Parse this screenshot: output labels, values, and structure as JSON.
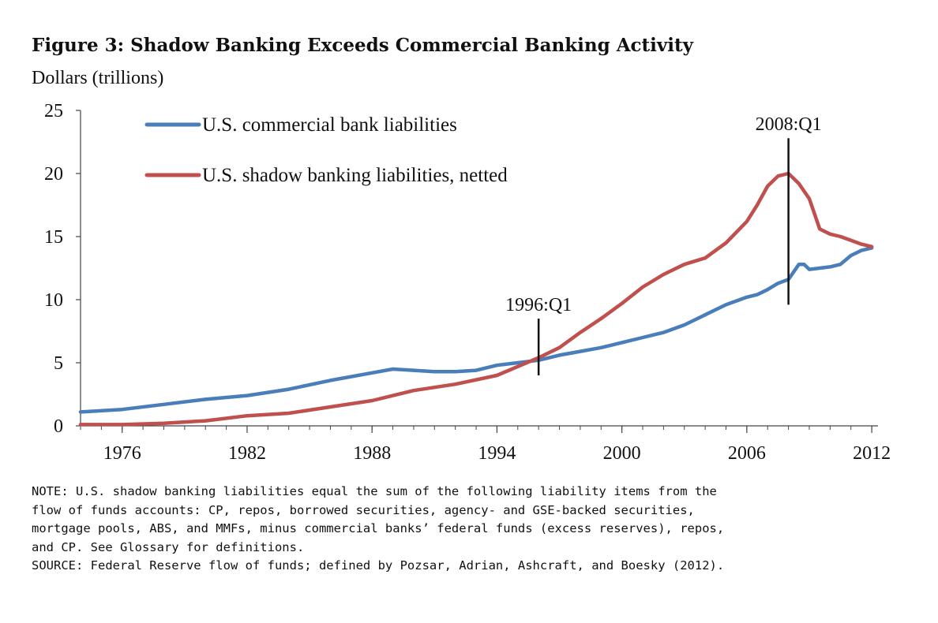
{
  "figure_title": "Figure 3: Shadow Banking Exceeds Commercial Banking Activity",
  "note_lines": [
    "NOTE: U.S. shadow banking liabilities equal the sum of the following liability items from the",
    "flow of funds accounts: CP, repos, borrowed securities, agency- and GSE-backed securities,",
    "mortgage pools, ABS, and MMFs, minus commercial banks’ federal funds (excess reserves), repos,",
    "and CP. See Glossary for definitions."
  ],
  "source_line": "SOURCE: Federal Reserve flow of funds; defined by Pozsar, Adrian, Ashcraft, and Boesky (2012).",
  "chart_data": {
    "type": "line",
    "title": "Figure 3: Shadow Banking Exceeds Commercial Banking Activity",
    "ylabel": "Dollars (trillions)",
    "xlabel": "",
    "xlim": [
      1974,
      2012.3
    ],
    "ylim": [
      0,
      25
    ],
    "yticks": [
      0,
      5,
      10,
      15,
      20,
      25
    ],
    "xticks": [
      "1976",
      "1982",
      "1988",
      "1994",
      "2000",
      "2006",
      "2012"
    ],
    "xtick_values": [
      1976,
      1982,
      1988,
      1994,
      2000,
      2006,
      2012
    ],
    "grid": false,
    "legend_position": "top-left",
    "series": [
      {
        "name": "U.S. commercial bank liabilities",
        "color": "#4a7ebb",
        "x": [
          1974,
          1976,
          1978,
          1980,
          1982,
          1984,
          1986,
          1988,
          1989,
          1990,
          1991,
          1992,
          1993,
          1994,
          1995,
          1996,
          1997,
          1998,
          1999,
          2000,
          2001,
          2002,
          2003,
          2004,
          2005,
          2006,
          2006.5,
          2007,
          2007.5,
          2008,
          2008.5,
          2008.75,
          2009,
          2009.5,
          2010,
          2010.5,
          2011,
          2011.5,
          2012
        ],
        "y": [
          1.1,
          1.3,
          1.7,
          2.1,
          2.4,
          2.9,
          3.6,
          4.2,
          4.5,
          4.4,
          4.3,
          4.3,
          4.4,
          4.8,
          5.0,
          5.2,
          5.6,
          5.9,
          6.2,
          6.6,
          7.0,
          7.4,
          8.0,
          8.8,
          9.6,
          10.2,
          10.4,
          10.8,
          11.3,
          11.6,
          12.8,
          12.8,
          12.4,
          12.5,
          12.6,
          12.8,
          13.5,
          13.9,
          14.1
        ]
      },
      {
        "name": "U.S. shadow banking liabilities, netted",
        "color": "#c0504d",
        "x": [
          1974,
          1976,
          1978,
          1980,
          1982,
          1984,
          1986,
          1988,
          1990,
          1992,
          1994,
          1996,
          1997,
          1998,
          1999,
          2000,
          2001,
          2002,
          2003,
          2004,
          2005,
          2006,
          2006.5,
          2007,
          2007.5,
          2008,
          2008.5,
          2009,
          2009.5,
          2010,
          2010.5,
          2011,
          2011.5,
          2012
        ],
        "y": [
          0.1,
          0.1,
          0.2,
          0.4,
          0.8,
          1.0,
          1.5,
          2.0,
          2.8,
          3.3,
          4.0,
          5.4,
          6.2,
          7.4,
          8.5,
          9.7,
          11.0,
          12.0,
          12.8,
          13.3,
          14.5,
          16.2,
          17.5,
          19.0,
          19.8,
          20.0,
          19.2,
          18.0,
          15.6,
          15.2,
          15.0,
          14.7,
          14.4,
          14.2
        ]
      }
    ],
    "annotations": [
      {
        "label": "1996:Q1",
        "x": 1996,
        "y_from": 4.0,
        "y_to": 8.5
      },
      {
        "label": "2008:Q1",
        "x": 2008,
        "y_from": 9.6,
        "y_to": 22.8
      }
    ]
  }
}
